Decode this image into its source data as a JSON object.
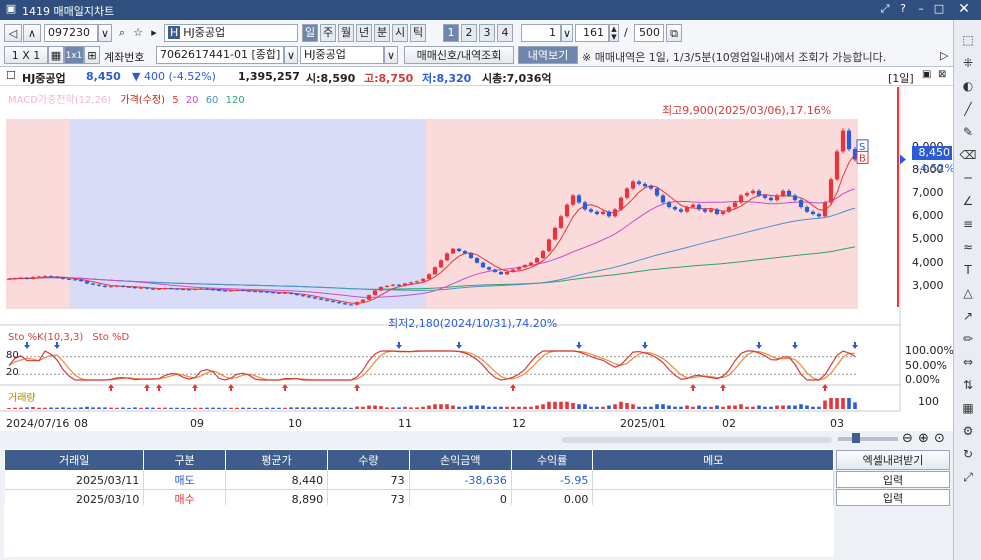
{
  "window": {
    "title": "1419 매매일지차트"
  },
  "toolbar1": {
    "code": "097230",
    "name": "HJ중공업",
    "periods": [
      "일",
      "주",
      "월",
      "년",
      "분",
      "시",
      "틱"
    ],
    "numbers": [
      "1",
      "2",
      "3",
      "4"
    ],
    "interval": "1",
    "count": "161",
    "slash": "/",
    "total": "500"
  },
  "toolbar2": {
    "grid_label": "1 X 1",
    "account_label": "계좌번호",
    "account": "7062617441-01 [종합]",
    "stock": "HJ중공업",
    "signal_button": "매매신호/내역조회",
    "history_button": "내역보기",
    "notice": "※ 매매내역은 1일, 1/3/5분(10영업일내)에서 조회가 가능합니다."
  },
  "quote": {
    "name": "HJ중공업",
    "price": "8,450",
    "change": "▼ 400 (-4.52%)",
    "volume": "1,395,257",
    "open": "시:8,590",
    "high": "고:8,750",
    "low": "저:8,320",
    "mcap": "시총:7,036억",
    "period_badge": "[1일]"
  },
  "chart_data": [
    {
      "type": "candlestick",
      "legend": [
        "MACD가중전략(12,26)",
        "가격(수정)",
        "5",
        "20",
        "60",
        "120"
      ],
      "y_ticks": [
        "9,000",
        "8,000",
        "7,000",
        "6,000",
        "5,000",
        "4,000",
        "3,000"
      ],
      "ylim": [
        2000,
        10200
      ],
      "x_ticks": [
        "2024/07/16",
        "08",
        "09",
        "10",
        "11",
        "12",
        "2025/01",
        "02",
        "03"
      ],
      "current": {
        "price": "8,450",
        "pct": "-4.52%"
      },
      "annotations": {
        "high": "최고9,900(2025/03/06),17.16%",
        "low": "최저2,180(2024/10/31),74.20%"
      },
      "markers": [
        "S",
        "B"
      ],
      "closes": [
        3300,
        3320,
        3350,
        3300,
        3380,
        3400,
        3420,
        3380,
        3350,
        3300,
        3280,
        3250,
        3200,
        3100,
        3050,
        3000,
        2950,
        2980,
        3000,
        2960,
        2950,
        2900,
        2920,
        2880,
        2850,
        2870,
        2900,
        2880,
        2860,
        2850,
        2840,
        2860,
        2880,
        2850,
        2820,
        2800,
        2780,
        2800,
        2820,
        2790,
        2770,
        2760,
        2750,
        2720,
        2700,
        2680,
        2700,
        2650,
        2600,
        2550,
        2500,
        2450,
        2400,
        2350,
        2300,
        2250,
        2200,
        2180,
        2300,
        2400,
        2600,
        2800,
        2950,
        3000,
        3050,
        3000,
        3100,
        3150,
        3200,
        3300,
        3500,
        3800,
        4100,
        4400,
        4600,
        4500,
        4400,
        4200,
        4000,
        3800,
        3700,
        3600,
        3500,
        3600,
        3700,
        3800,
        3900,
        4000,
        4200,
        4500,
        5000,
        5500,
        6000,
        6500,
        6900,
        6600,
        6300,
        6200,
        6100,
        6200,
        6000,
        6300,
        6800,
        7200,
        7500,
        7400,
        7300,
        7200,
        6900,
        6600,
        6400,
        6300,
        6200,
        6400,
        6500,
        6300,
        6200,
        6300,
        6100,
        6200,
        6400,
        6600,
        6900,
        7000,
        7100,
        6900,
        6800,
        6700,
        6900,
        7100,
        6900,
        6700,
        6400,
        6200,
        6100,
        6000,
        6600,
        7600,
        8800,
        9700,
        8900,
        8450
      ],
      "ma_levels": {
        "ma20_end": 7100,
        "ma60_end": 6300,
        "ma120_end": 4500
      }
    },
    {
      "type": "line",
      "legend": [
        "Sto %K(10,3,3)",
        "Sto %D"
      ],
      "y_ticks": [
        "100.00%",
        "50.00%",
        "0.00%"
      ],
      "left_labels": [
        "80",
        "20"
      ],
      "ylim": [
        0,
        100
      ]
    },
    {
      "type": "bar",
      "legend": [
        "거래량"
      ],
      "y_ticks": [
        "100"
      ]
    }
  ],
  "trade_table": {
    "headers": [
      "거래일",
      "구분",
      "평균가",
      "수량",
      "손익금액",
      "수익률",
      "메모"
    ],
    "rows": [
      [
        "2025/03/11",
        "매도",
        "8,440",
        "73",
        "-38,636",
        "-5.95",
        ""
      ],
      [
        "2025/03/10",
        "매수",
        "8,890",
        "73",
        "0",
        "0.00",
        ""
      ]
    ],
    "side_colors": {
      "매도": "#2a5fcf",
      "매수": "#d33b3b"
    }
  },
  "side_panel": {
    "excel": "엑셀내려받기",
    "input1": "입력",
    "input2": "입력"
  },
  "colors": {
    "up": "#e8353b",
    "down": "#2b5bd7",
    "pink_bg": "#fbdadc",
    "blue_bg": "#d8dcf7",
    "header": "#3f5d8c"
  }
}
